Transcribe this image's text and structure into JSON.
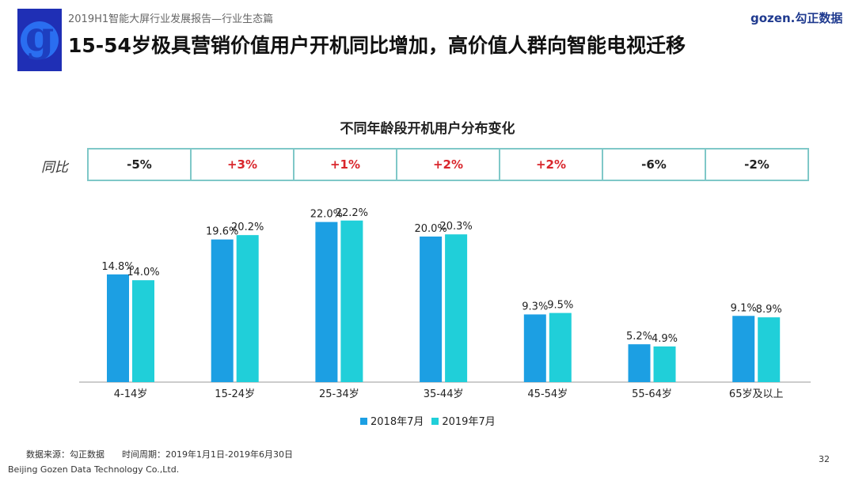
{
  "header": {
    "subtitle": "2019H1智能大屏行业发展报告—行业生态篇",
    "title": "15-54岁极具营销价值用户开机同比增加，高价值人群向智能电视迁移",
    "brand": "gozen.勾正数据"
  },
  "yoy": {
    "label": "同比",
    "values": [
      "-5%",
      "+3%",
      "+1%",
      "+2%",
      "+2%",
      "-6%",
      "-2%"
    ],
    "positive_color": "#d9262c",
    "negative_color": "#222222"
  },
  "chart_data": {
    "type": "bar",
    "title": "不同年龄段开机用户分布变化",
    "categories": [
      "4-14岁",
      "15-24岁",
      "25-34岁",
      "35-44岁",
      "45-54岁",
      "55-64岁",
      "65岁及以上"
    ],
    "series": [
      {
        "name": "2018年7月",
        "color": "#1c9fe3",
        "values": [
          14.8,
          19.6,
          22.0,
          20.0,
          9.3,
          5.2,
          9.1
        ],
        "labels": [
          "14.8%",
          "19.6%",
          "22.0%",
          "20.0%",
          "9.3%",
          "5.2%",
          "9.1%"
        ]
      },
      {
        "name": "2019年7月",
        "color": "#20cfd9",
        "values": [
          14.0,
          20.2,
          22.2,
          20.3,
          9.5,
          4.9,
          8.9
        ],
        "labels": [
          "14.0%",
          "20.2%",
          "22.2%",
          "20.3%",
          "9.5%",
          "4.9%",
          "8.9%"
        ]
      }
    ],
    "legend": "bottom",
    "grid": false
  },
  "footer": {
    "source": "数据来源：勾正数据",
    "period": "时间周期：2019年1月1日-2019年6月30日",
    "company": "Beijing Gozen Data Technology Co.,Ltd.",
    "page": "32"
  }
}
